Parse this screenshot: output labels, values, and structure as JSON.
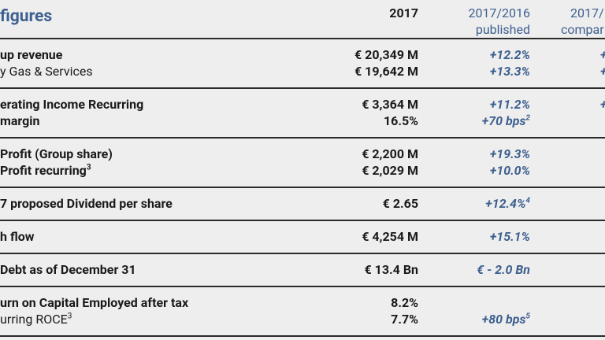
{
  "header": {
    "title": "figures",
    "col_2017": "2017",
    "col_published": [
      "2017/2016",
      "published"
    ],
    "col_comparable": [
      "2017/",
      "compar"
    ]
  },
  "table": {
    "groups": [
      [
        {
          "label": "up revenue",
          "value": "€ 20,349 M",
          "change": "+12.2%",
          "extra": "+",
          "bold": true
        },
        {
          "label": "y Gas & Services",
          "value": "€ 19,642 M",
          "change": "+13.3%",
          "extra": "+",
          "bold": false
        }
      ],
      [
        {
          "label": "erating Income Recurring",
          "value": "€ 3,364 M",
          "change": "+11.2%",
          "extra": "+",
          "bold": true
        },
        {
          "label": "margin",
          "value": "16.5%",
          "change": "+70 bps",
          "change_sup": "2",
          "bold": true
        }
      ],
      [
        {
          "label": "Profit (Group share)",
          "value": "€ 2,200 M",
          "change": "+19.3%",
          "bold": true
        },
        {
          "label": "Profit recurring",
          "label_sup": "3",
          "value": "€ 2,029 M",
          "change": "+10.0%",
          "bold": true
        }
      ],
      [
        {
          "label": "7 proposed Dividend per share",
          "value": "€ 2.65",
          "change": "+12.4%",
          "change_sup": "4",
          "bold": true
        }
      ],
      [
        {
          "label": "h flow",
          "value": "€ 4,254 M",
          "change": "+15.1%",
          "bold": true
        }
      ],
      [
        {
          "label": "Debt as of December 31",
          "value": "€ 13.4 Bn",
          "change": "€ - 2.0 Bn",
          "bold": true
        }
      ],
      [
        {
          "label": "urn on Capital Employed after tax",
          "value": "8.2%",
          "bold": true
        },
        {
          "label": "urring ROCE",
          "label_sup": "3",
          "value": "7.7%",
          "change": "+80 bps",
          "change_sup": "5",
          "bold": false
        }
      ]
    ]
  }
}
